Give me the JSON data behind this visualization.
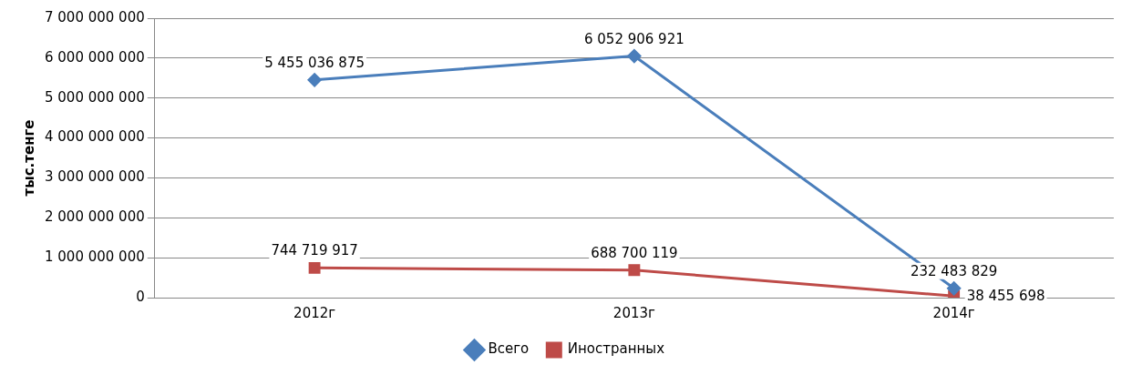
{
  "chart_data": {
    "type": "line",
    "ylabel": "тыс.тенге",
    "categories": [
      "2012г",
      "2013г",
      "2014г"
    ],
    "series": [
      {
        "name": "Всего",
        "color": "#4a7ebb",
        "marker": "diamond",
        "values": [
          5455036875,
          6052906921,
          232483829
        ],
        "value_labels": [
          "5 455 036 875",
          "6 052 906 921",
          "232 483 829"
        ]
      },
      {
        "name": "Иностранных",
        "color": "#be4b48",
        "marker": "square",
        "values": [
          744719917,
          688700119,
          38455698
        ],
        "value_labels": [
          "744 719 917",
          "688 700 119",
          "38 455 698"
        ]
      }
    ],
    "ylim": [
      0,
      7000000000
    ],
    "yticks": [
      {
        "value": 0,
        "label": "0"
      },
      {
        "value": 1000000000,
        "label": "1 000 000 000"
      },
      {
        "value": 2000000000,
        "label": "2 000 000 000"
      },
      {
        "value": 3000000000,
        "label": "3 000 000 000"
      },
      {
        "value": 4000000000,
        "label": "4 000 000 000"
      },
      {
        "value": 5000000000,
        "label": "5 000 000 000"
      },
      {
        "value": 6000000000,
        "label": "6 000 000 000"
      },
      {
        "value": 7000000000,
        "label": "7 000 000 000"
      }
    ],
    "grid": "y",
    "legend": "bottom"
  }
}
